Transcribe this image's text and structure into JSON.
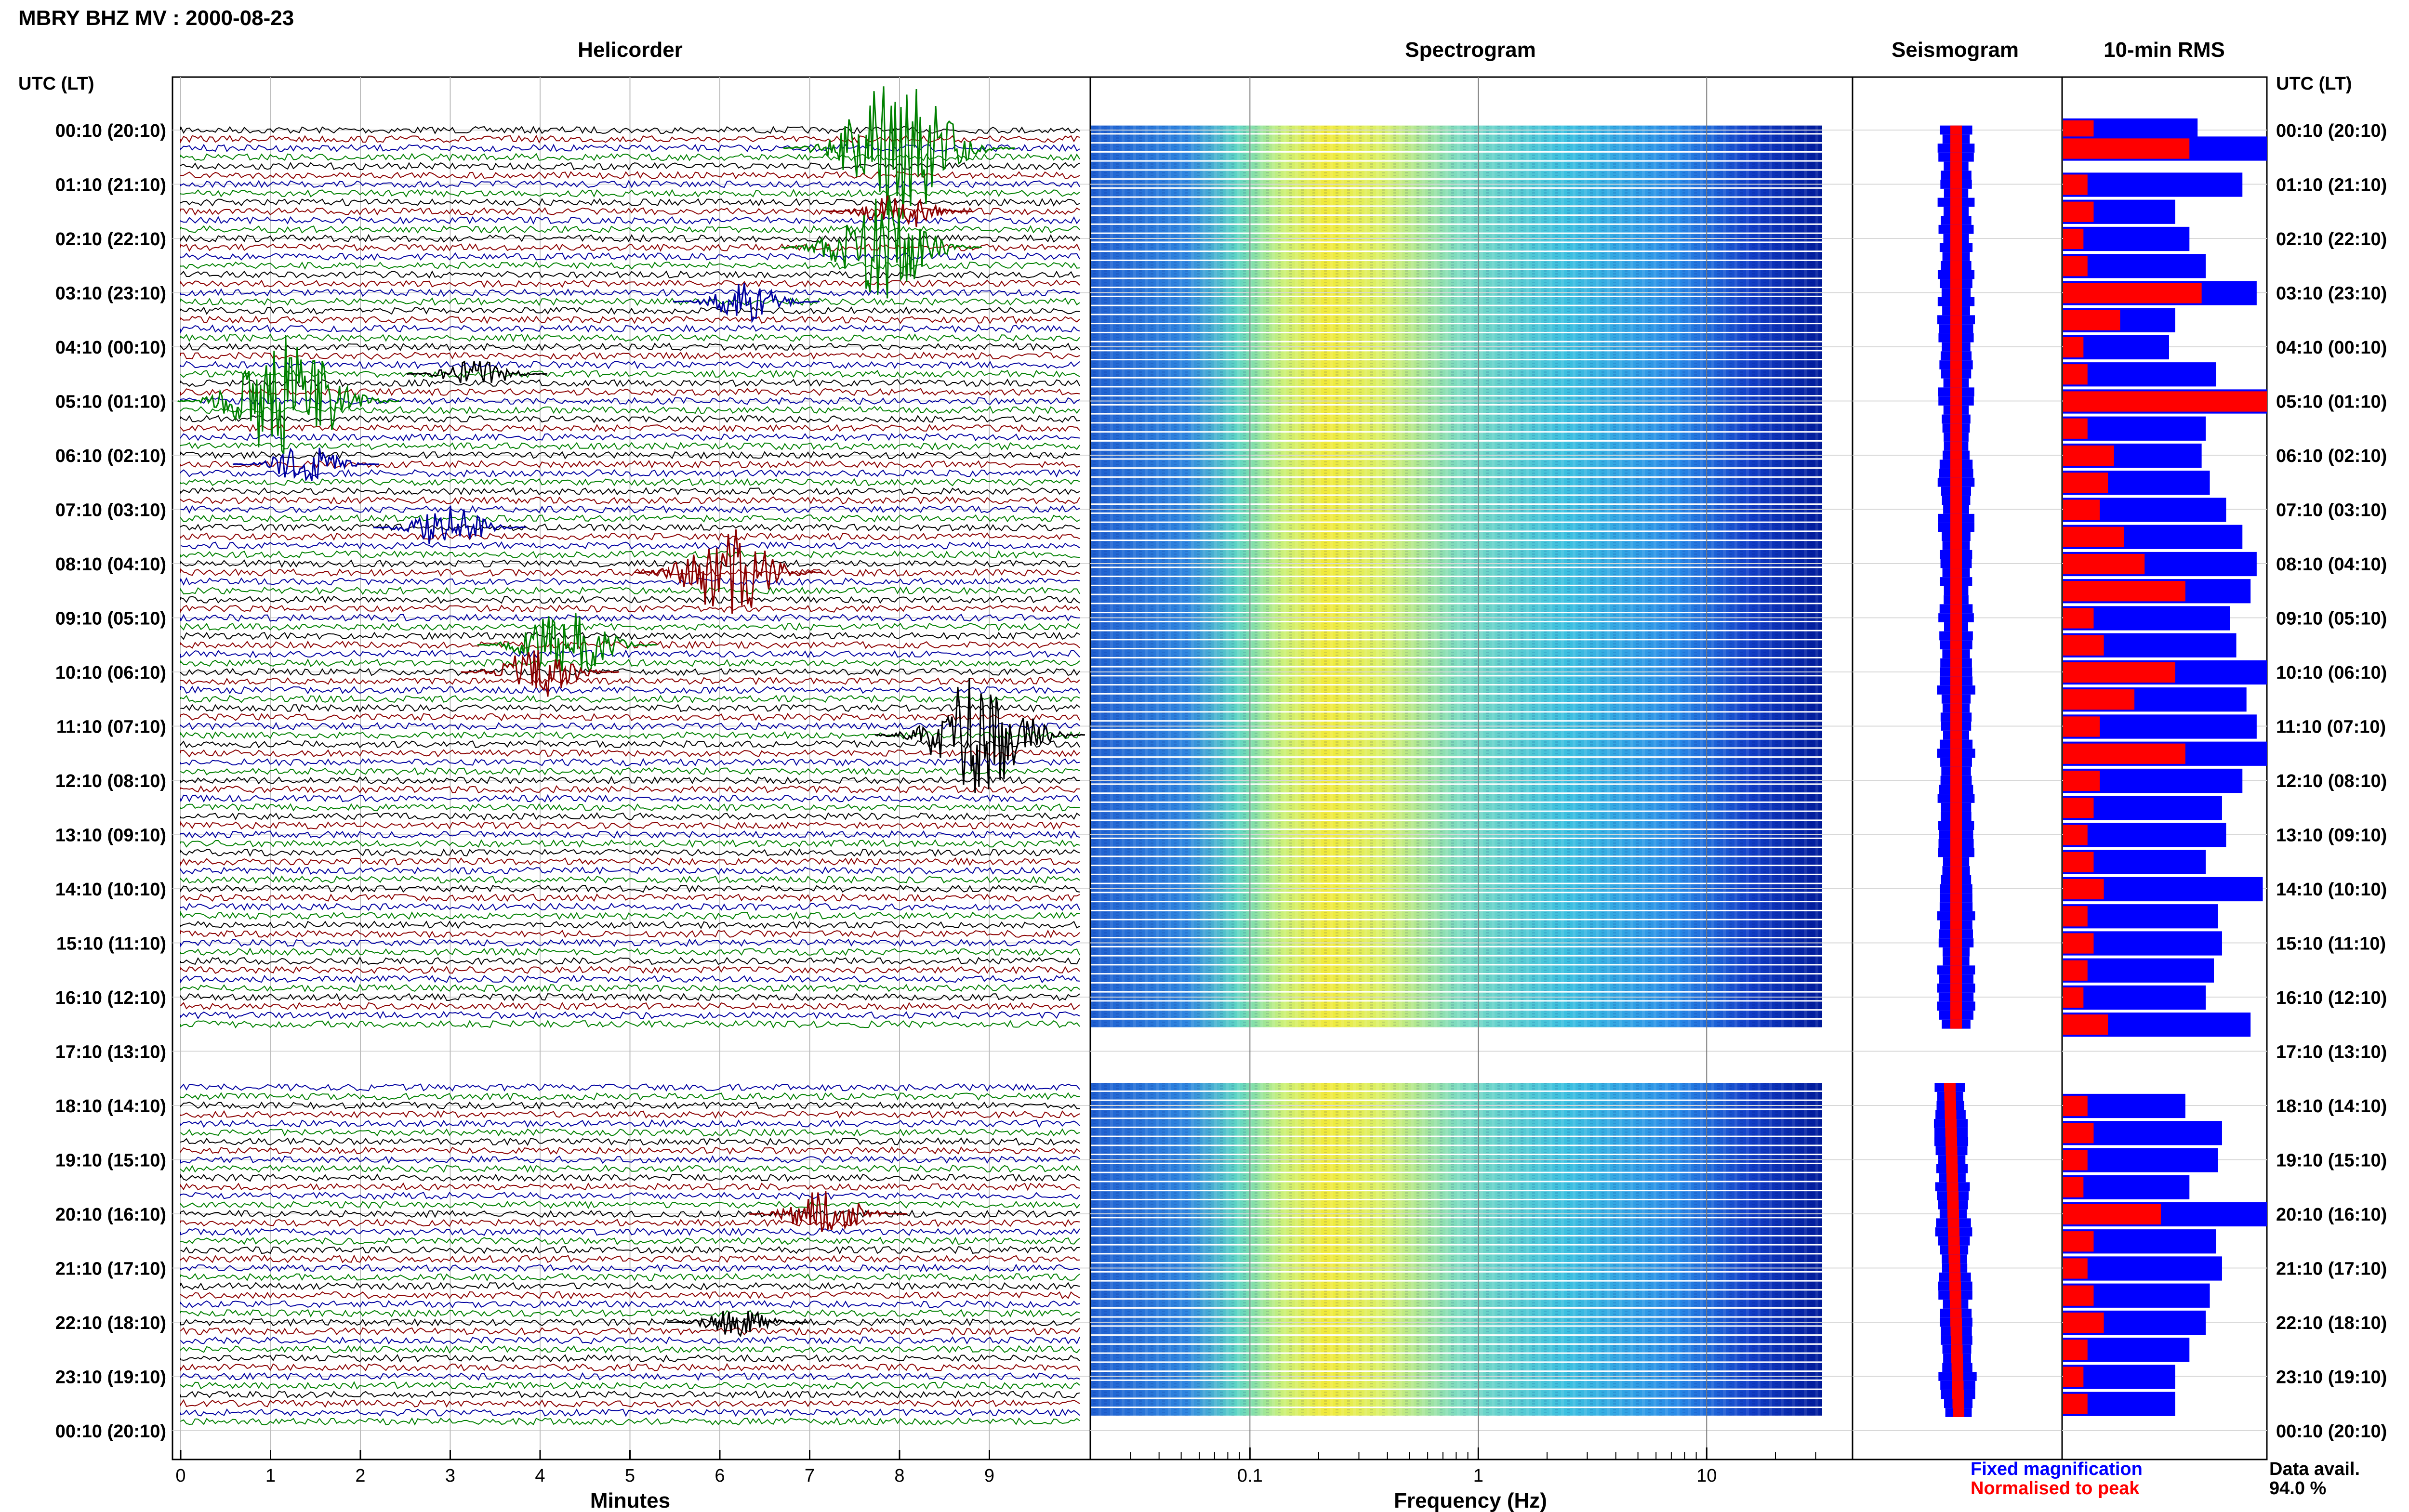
{
  "station_title": "MBRY BHZ MV : 2000-08-23",
  "panels": {
    "helicorder": "Helicorder",
    "spectrogram": "Spectrogram",
    "seismogram": "Seismogram",
    "rms": "10-min RMS"
  },
  "time_axis": {
    "header": "UTC (LT)",
    "labels": [
      "00:10 (20:10)",
      "01:10 (21:10)",
      "02:10 (22:10)",
      "03:10 (23:10)",
      "04:10 (00:10)",
      "05:10 (01:10)",
      "06:10 (02:10)",
      "07:10 (03:10)",
      "08:10 (04:10)",
      "09:10 (05:10)",
      "10:10 (06:10)",
      "11:10 (07:10)",
      "12:10 (08:10)",
      "13:10 (09:10)",
      "14:10 (10:10)",
      "15:10 (11:10)",
      "16:10 (12:10)",
      "17:10 (13:10)",
      "18:10 (14:10)",
      "19:10 (15:10)",
      "20:10 (16:10)",
      "21:10 (17:10)",
      "22:10 (18:10)",
      "23:10 (19:10)",
      "00:10 (20:10)"
    ]
  },
  "helicorder_axis": {
    "xlabel": "Minutes",
    "ticks": [
      "0",
      "1",
      "2",
      "3",
      "4",
      "5",
      "6",
      "7",
      "8",
      "9"
    ]
  },
  "spectrogram_axis": {
    "xlabel": "Frequency (Hz)",
    "ticks": [
      "0.1",
      "1",
      "10"
    ]
  },
  "legend": {
    "fixed": "Fixed magnification",
    "normalised": "Normalised to peak",
    "fixed_color": "#0000ff",
    "normalised_color": "#ff0000"
  },
  "data_avail": {
    "label": "Data avail.",
    "value": "94.0 %"
  },
  "trace_colors": [
    "#000000",
    "#8b0000",
    "#0000a0",
    "#008000"
  ],
  "chart_data": {
    "type": "heatmap",
    "gap": {
      "from": "16:50",
      "to": "17:50"
    },
    "helicorder_events": [
      {
        "time": "00:30",
        "minute": 8.0,
        "amplitude": 5.5,
        "color": "green"
      },
      {
        "time": "01:40",
        "minute": 8.0,
        "amplitude": 1.5,
        "color": "darkred"
      },
      {
        "time": "02:20",
        "minute": 7.8,
        "amplitude": 4.0,
        "color": "green"
      },
      {
        "time": "03:20",
        "minute": 6.3,
        "amplitude": 1.5,
        "color": "blue"
      },
      {
        "time": "04:40",
        "minute": 3.3,
        "amplitude": 1.2,
        "color": "black"
      },
      {
        "time": "05:10",
        "minute": 1.2,
        "amplitude": 5.0,
        "color": "green"
      },
      {
        "time": "06:20",
        "minute": 1.4,
        "amplitude": 1.5,
        "color": "blue"
      },
      {
        "time": "07:30",
        "minute": 3.0,
        "amplitude": 1.8,
        "color": "blue"
      },
      {
        "time": "08:20",
        "minute": 6.1,
        "amplitude": 3.5,
        "color": "darkred"
      },
      {
        "time": "09:40",
        "minute": 4.3,
        "amplitude": 3.0,
        "color": "green"
      },
      {
        "time": "10:10",
        "minute": 4.0,
        "amplitude": 2.0,
        "color": "darkred"
      },
      {
        "time": "11:20",
        "minute": 8.9,
        "amplitude": 4.5,
        "color": "black"
      },
      {
        "time": "20:10",
        "minute": 7.2,
        "amplitude": 2.0,
        "color": "darkred"
      },
      {
        "time": "22:10",
        "minute": 6.2,
        "amplitude": 1.2,
        "color": "black"
      }
    ],
    "rms_rows": [
      {
        "time": "00:10",
        "fixed": 0.66,
        "normalised": 0.15
      },
      {
        "time": "00:30",
        "fixed": 1.0,
        "normalised": 0.62
      },
      {
        "time": "01:10",
        "fixed": 0.88,
        "normalised": 0.12
      },
      {
        "time": "01:40",
        "fixed": 0.55,
        "normalised": 0.15
      },
      {
        "time": "02:10",
        "fixed": 0.62,
        "normalised": 0.1
      },
      {
        "time": "02:40",
        "fixed": 0.7,
        "normalised": 0.12
      },
      {
        "time": "03:10",
        "fixed": 0.95,
        "normalised": 0.68
      },
      {
        "time": "03:40",
        "fixed": 0.55,
        "normalised": 0.28
      },
      {
        "time": "04:10",
        "fixed": 0.52,
        "normalised": 0.1
      },
      {
        "time": "04:40",
        "fixed": 0.75,
        "normalised": 0.12
      },
      {
        "time": "05:10",
        "fixed": 1.0,
        "normalised": 1.0
      },
      {
        "time": "05:40",
        "fixed": 0.7,
        "normalised": 0.12
      },
      {
        "time": "06:10",
        "fixed": 0.68,
        "normalised": 0.25
      },
      {
        "time": "06:40",
        "fixed": 0.72,
        "normalised": 0.22
      },
      {
        "time": "07:10",
        "fixed": 0.8,
        "normalised": 0.18
      },
      {
        "time": "07:40",
        "fixed": 0.88,
        "normalised": 0.3
      },
      {
        "time": "08:10",
        "fixed": 0.95,
        "normalised": 0.4
      },
      {
        "time": "08:40",
        "fixed": 0.92,
        "normalised": 0.6
      },
      {
        "time": "09:10",
        "fixed": 0.82,
        "normalised": 0.15
      },
      {
        "time": "09:40",
        "fixed": 0.85,
        "normalised": 0.2
      },
      {
        "time": "10:10",
        "fixed": 1.0,
        "normalised": 0.55
      },
      {
        "time": "10:40",
        "fixed": 0.9,
        "normalised": 0.35
      },
      {
        "time": "11:10",
        "fixed": 0.95,
        "normalised": 0.18
      },
      {
        "time": "11:40",
        "fixed": 1.0,
        "normalised": 0.6
      },
      {
        "time": "12:10",
        "fixed": 0.88,
        "normalised": 0.18
      },
      {
        "time": "12:40",
        "fixed": 0.78,
        "normalised": 0.15
      },
      {
        "time": "13:10",
        "fixed": 0.8,
        "normalised": 0.12
      },
      {
        "time": "13:40",
        "fixed": 0.7,
        "normalised": 0.15
      },
      {
        "time": "14:10",
        "fixed": 0.98,
        "normalised": 0.2
      },
      {
        "time": "14:40",
        "fixed": 0.76,
        "normalised": 0.12
      },
      {
        "time": "15:10",
        "fixed": 0.78,
        "normalised": 0.15
      },
      {
        "time": "15:40",
        "fixed": 0.74,
        "normalised": 0.12
      },
      {
        "time": "16:10",
        "fixed": 0.7,
        "normalised": 0.1
      },
      {
        "time": "16:40",
        "fixed": 0.92,
        "normalised": 0.22
      },
      {
        "time": "18:10",
        "fixed": 0.6,
        "normalised": 0.12
      },
      {
        "time": "18:40",
        "fixed": 0.78,
        "normalised": 0.15
      },
      {
        "time": "19:10",
        "fixed": 0.76,
        "normalised": 0.12
      },
      {
        "time": "19:40",
        "fixed": 0.62,
        "normalised": 0.1
      },
      {
        "time": "20:10",
        "fixed": 1.0,
        "normalised": 0.48
      },
      {
        "time": "20:40",
        "fixed": 0.75,
        "normalised": 0.15
      },
      {
        "time": "21:10",
        "fixed": 0.78,
        "normalised": 0.12
      },
      {
        "time": "21:40",
        "fixed": 0.72,
        "normalised": 0.15
      },
      {
        "time": "22:10",
        "fixed": 0.7,
        "normalised": 0.2
      },
      {
        "time": "22:40",
        "fixed": 0.62,
        "normalised": 0.12
      },
      {
        "time": "23:10",
        "fixed": 0.55,
        "normalised": 0.1
      },
      {
        "time": "23:40",
        "fixed": 0.55,
        "normalised": 0.12
      }
    ]
  }
}
